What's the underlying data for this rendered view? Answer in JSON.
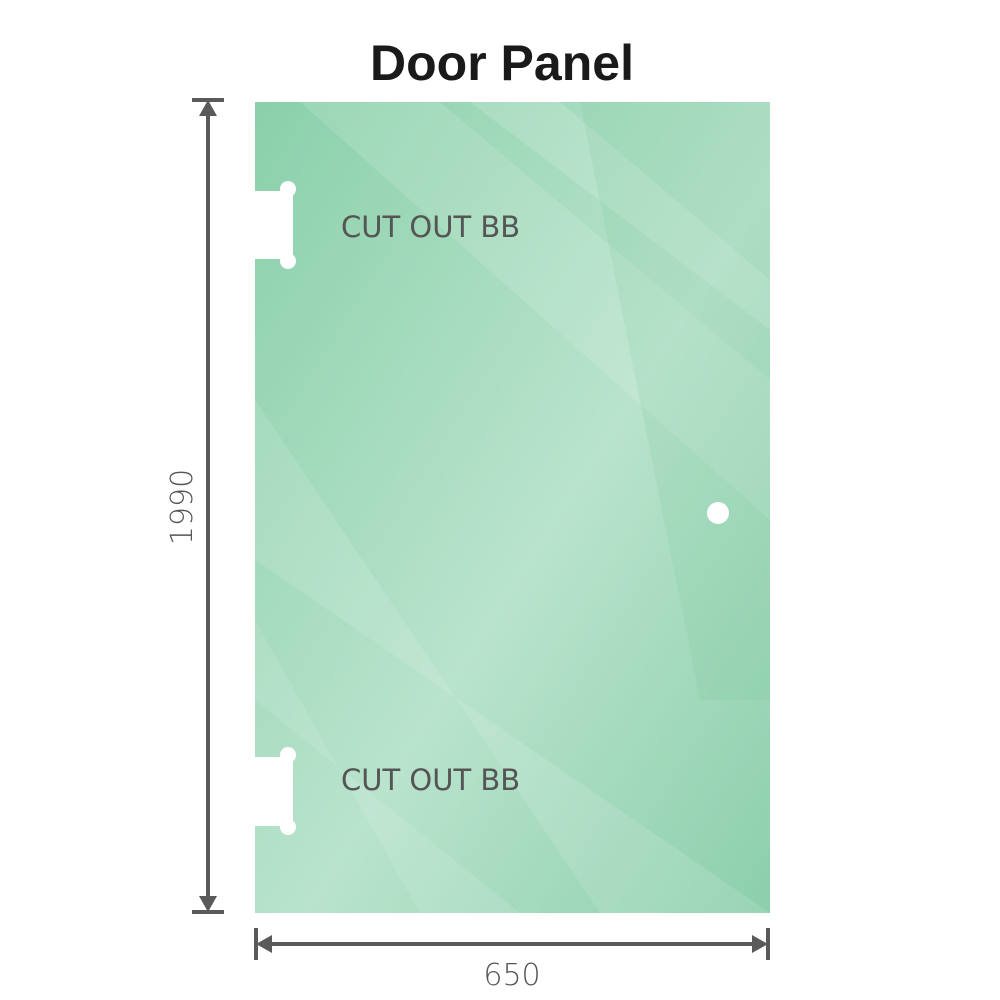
{
  "title": "Door Panel",
  "cutout_top_label": "CUT OUT BB",
  "cutout_bottom_label": "CUT OUT BB",
  "height_dimension": "1990",
  "width_dimension": "650",
  "colors": {
    "glass": "#86cfa8",
    "dimension_line": "#5a5a5a"
  }
}
